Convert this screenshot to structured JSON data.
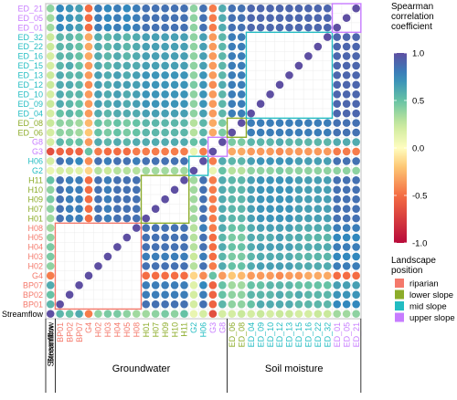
{
  "chart_data": {
    "type": "heatmap",
    "variables": [
      "Streamflow",
      "BP01",
      "BP02",
      "BP07",
      "G4",
      "H02",
      "H03",
      "H04",
      "H05",
      "H08",
      "H01",
      "H07",
      "H09",
      "H10",
      "H11",
      "G2",
      "H06",
      "G3",
      "G8",
      "ED_06",
      "ED_08",
      "ED_04",
      "ED_09",
      "ED_10",
      "ED_12",
      "ED_13",
      "ED_15",
      "ED_16",
      "ED_22",
      "ED_32",
      "ED_01",
      "ED_05",
      "ED_21"
    ],
    "position": [
      "",
      "riparian",
      "riparian",
      "riparian",
      "riparian",
      "riparian",
      "riparian",
      "riparian",
      "riparian",
      "riparian",
      "lower slope",
      "lower slope",
      "lower slope",
      "lower slope",
      "lower slope",
      "mid slope",
      "mid slope",
      "upper slope",
      "upper slope",
      "lower slope",
      "lower slope",
      "mid slope",
      "mid slope",
      "mid slope",
      "mid slope",
      "mid slope",
      "mid slope",
      "mid slope",
      "mid slope",
      "mid slope",
      "upper slope",
      "upper slope",
      "upper slope"
    ],
    "group_blocks": [
      {
        "name": "riparian",
        "start": 1,
        "end": 9
      },
      {
        "name": "lower slope",
        "start": 10,
        "end": 14
      },
      {
        "name": "mid slope",
        "start": 15,
        "end": 16
      },
      {
        "name": "upper slope",
        "start": 17,
        "end": 18
      },
      {
        "name": "lower slope",
        "start": 19,
        "end": 20
      },
      {
        "name": "mid slope",
        "start": 21,
        "end": 29
      },
      {
        "name": "upper slope",
        "start": 30,
        "end": 32
      }
    ],
    "categories_bottom": [
      {
        "label": "Streamflow",
        "start": 0,
        "end": 0
      },
      {
        "label": "Groundwater",
        "start": 1,
        "end": 18
      },
      {
        "label": "Soil moisture",
        "start": 19,
        "end": 32
      }
    ],
    "matrix_note": "Spearman correlation, symmetric; within-block cells left blank",
    "matrix": [
      [
        1,
        0.55,
        0.5,
        0.6,
        -0.45,
        0.4,
        0.45,
        0.45,
        0.4,
        0.35,
        0.35,
        0.4,
        0.45,
        0.4,
        0.5,
        0.1,
        0.2,
        -0.65,
        0.2,
        0.2,
        0.25,
        0.2,
        0.25,
        0.2,
        0.25,
        0.25,
        0.2,
        0.2,
        0.25,
        0.25,
        0.35,
        0.35,
        0.4
      ],
      [
        0.55,
        1,
        null,
        null,
        null,
        null,
        null,
        null,
        null,
        null,
        0.85,
        0.85,
        0.85,
        0.85,
        0.85,
        0.2,
        0.85,
        -0.55,
        0.55,
        0.4,
        0.4,
        0.5,
        0.6,
        0.6,
        0.6,
        0.6,
        0.55,
        0.55,
        0.55,
        0.55,
        0.75,
        0.75,
        0.75
      ],
      [
        0.5,
        null,
        1,
        null,
        null,
        null,
        null,
        null,
        null,
        null,
        0.8,
        0.8,
        0.8,
        0.8,
        0.8,
        0.2,
        0.8,
        -0.55,
        0.5,
        0.4,
        0.4,
        0.55,
        0.55,
        0.55,
        0.6,
        0.55,
        0.6,
        0.55,
        0.55,
        0.55,
        0.7,
        0.7,
        0.7
      ],
      [
        0.6,
        null,
        null,
        1,
        null,
        null,
        null,
        null,
        null,
        null,
        0.8,
        0.8,
        0.8,
        0.8,
        0.8,
        0.15,
        0.75,
        -0.55,
        0.5,
        0.35,
        0.35,
        0.5,
        0.5,
        0.55,
        0.55,
        0.55,
        0.5,
        0.5,
        0.5,
        0.5,
        0.65,
        0.65,
        0.65
      ],
      [
        -0.45,
        null,
        null,
        null,
        1,
        null,
        null,
        null,
        null,
        null,
        -0.5,
        -0.5,
        -0.5,
        -0.5,
        -0.5,
        -0.15,
        -0.4,
        0.5,
        -0.35,
        -0.2,
        -0.25,
        -0.35,
        -0.35,
        -0.35,
        -0.4,
        -0.35,
        -0.35,
        -0.3,
        -0.3,
        -0.3,
        -0.5,
        -0.5,
        -0.5
      ],
      [
        0.4,
        null,
        null,
        null,
        null,
        1,
        null,
        null,
        null,
        null,
        0.85,
        0.85,
        0.85,
        0.85,
        0.85,
        0.3,
        0.85,
        -0.45,
        0.6,
        0.5,
        0.5,
        0.6,
        0.65,
        0.65,
        0.65,
        0.65,
        0.6,
        0.6,
        0.6,
        0.6,
        0.8,
        0.8,
        0.8
      ],
      [
        0.45,
        null,
        null,
        null,
        null,
        null,
        1,
        null,
        null,
        null,
        0.8,
        0.8,
        0.8,
        0.8,
        0.8,
        0.25,
        0.8,
        -0.5,
        0.55,
        0.45,
        0.45,
        0.55,
        0.6,
        0.6,
        0.6,
        0.6,
        0.55,
        0.55,
        0.55,
        0.55,
        0.75,
        0.75,
        0.75
      ],
      [
        0.45,
        null,
        null,
        null,
        null,
        null,
        null,
        1,
        null,
        null,
        0.85,
        0.85,
        0.85,
        0.85,
        0.85,
        0.3,
        0.85,
        -0.5,
        0.6,
        0.5,
        0.5,
        0.6,
        0.65,
        0.65,
        0.65,
        0.65,
        0.6,
        0.6,
        0.6,
        0.6,
        0.8,
        0.8,
        0.8
      ],
      [
        0.4,
        null,
        null,
        null,
        null,
        null,
        null,
        null,
        1,
        null,
        0.85,
        0.85,
        0.85,
        0.85,
        0.85,
        0.3,
        0.85,
        -0.5,
        0.55,
        0.45,
        0.45,
        0.6,
        0.6,
        0.6,
        0.65,
        0.6,
        0.6,
        0.55,
        0.55,
        0.55,
        0.75,
        0.75,
        0.75
      ],
      [
        0.35,
        null,
        null,
        null,
        null,
        null,
        null,
        null,
        null,
        1,
        0.85,
        0.85,
        0.85,
        0.85,
        0.85,
        0.3,
        0.8,
        -0.45,
        0.6,
        0.5,
        0.5,
        0.6,
        0.65,
        0.65,
        0.65,
        0.65,
        0.6,
        0.6,
        0.6,
        0.6,
        0.8,
        0.8,
        0.8
      ],
      [
        0.35,
        0.85,
        0.8,
        0.8,
        -0.5,
        0.85,
        0.8,
        0.85,
        0.85,
        0.85,
        1,
        null,
        null,
        null,
        null,
        0.35,
        0.85,
        -0.45,
        0.6,
        0.55,
        0.55,
        0.65,
        0.7,
        0.7,
        0.7,
        0.7,
        0.65,
        0.65,
        0.65,
        0.65,
        0.85,
        0.85,
        0.85
      ],
      [
        0.4,
        0.85,
        0.8,
        0.8,
        -0.5,
        0.85,
        0.8,
        0.85,
        0.85,
        0.85,
        null,
        1,
        null,
        null,
        null,
        0.35,
        0.85,
        -0.45,
        0.6,
        0.55,
        0.55,
        0.65,
        0.7,
        0.7,
        0.7,
        0.7,
        0.65,
        0.65,
        0.65,
        0.65,
        0.85,
        0.85,
        0.85
      ],
      [
        0.45,
        0.85,
        0.8,
        0.8,
        -0.5,
        0.85,
        0.8,
        0.85,
        0.85,
        0.85,
        null,
        null,
        1,
        null,
        null,
        0.35,
        0.85,
        -0.45,
        0.6,
        0.55,
        0.55,
        0.65,
        0.7,
        0.7,
        0.7,
        0.7,
        0.65,
        0.65,
        0.65,
        0.65,
        0.85,
        0.85,
        0.85
      ],
      [
        0.4,
        0.85,
        0.8,
        0.8,
        -0.5,
        0.85,
        0.8,
        0.85,
        0.85,
        0.85,
        null,
        null,
        null,
        1,
        null,
        0.35,
        0.85,
        -0.45,
        0.6,
        0.55,
        0.55,
        0.65,
        0.7,
        0.7,
        0.7,
        0.7,
        0.65,
        0.65,
        0.65,
        0.65,
        0.85,
        0.85,
        0.85
      ],
      [
        0.5,
        0.85,
        0.8,
        0.8,
        -0.5,
        0.85,
        0.8,
        0.85,
        0.85,
        0.85,
        null,
        null,
        null,
        null,
        1,
        0.35,
        0.85,
        -0.45,
        0.6,
        0.55,
        0.55,
        0.65,
        0.7,
        0.7,
        0.7,
        0.7,
        0.65,
        0.65,
        0.65,
        0.65,
        0.85,
        0.85,
        0.85
      ],
      [
        0.1,
        0.2,
        0.2,
        0.15,
        -0.15,
        0.3,
        0.25,
        0.3,
        0.3,
        0.3,
        0.35,
        0.35,
        0.35,
        0.35,
        0.35,
        1,
        null,
        0.1,
        0.5,
        0.3,
        0.3,
        0.4,
        0.4,
        0.4,
        0.45,
        0.4,
        0.4,
        0.4,
        0.4,
        0.4,
        0.4,
        0.4,
        0.4
      ],
      [
        0.2,
        0.85,
        0.8,
        0.75,
        -0.4,
        0.85,
        0.8,
        0.85,
        0.85,
        0.8,
        0.85,
        0.85,
        0.85,
        0.85,
        0.85,
        null,
        1,
        -0.45,
        0.6,
        0.55,
        0.55,
        0.65,
        0.7,
        0.7,
        0.7,
        0.7,
        0.65,
        0.65,
        0.65,
        0.65,
        0.85,
        0.85,
        0.85
      ],
      [
        -0.65,
        -0.55,
        -0.55,
        -0.55,
        0.5,
        -0.45,
        -0.5,
        -0.5,
        -0.5,
        -0.45,
        -0.45,
        -0.45,
        -0.45,
        -0.45,
        -0.45,
        0.1,
        -0.45,
        1,
        null,
        -0.3,
        -0.3,
        -0.35,
        -0.35,
        -0.35,
        -0.4,
        -0.35,
        -0.35,
        -0.35,
        -0.35,
        -0.35,
        -0.45,
        -0.45,
        -0.45
      ],
      [
        0.2,
        0.55,
        0.5,
        0.5,
        -0.35,
        0.6,
        0.55,
        0.6,
        0.55,
        0.6,
        0.6,
        0.6,
        0.6,
        0.6,
        0.6,
        0.5,
        0.6,
        null,
        1,
        0.45,
        0.45,
        0.55,
        0.55,
        0.55,
        0.6,
        0.55,
        0.55,
        0.55,
        0.55,
        0.55,
        0.6,
        0.6,
        0.6
      ],
      [
        0.2,
        0.4,
        0.4,
        0.35,
        -0.2,
        0.5,
        0.45,
        0.5,
        0.45,
        0.5,
        0.55,
        0.55,
        0.55,
        0.55,
        0.55,
        0.3,
        0.55,
        -0.3,
        0.45,
        1,
        null,
        0.8,
        0.8,
        0.8,
        0.8,
        0.8,
        0.8,
        0.8,
        0.8,
        0.8,
        0.85,
        0.85,
        0.85
      ],
      [
        0.25,
        0.4,
        0.4,
        0.35,
        -0.25,
        0.5,
        0.45,
        0.5,
        0.45,
        0.5,
        0.55,
        0.55,
        0.55,
        0.55,
        0.55,
        0.3,
        0.55,
        -0.3,
        0.45,
        null,
        1,
        0.8,
        0.8,
        0.8,
        0.8,
        0.8,
        0.8,
        0.8,
        0.8,
        0.8,
        0.85,
        0.85,
        0.85
      ],
      [
        0.2,
        0.5,
        0.55,
        0.5,
        -0.35,
        0.6,
        0.55,
        0.6,
        0.6,
        0.6,
        0.65,
        0.65,
        0.65,
        0.65,
        0.65,
        0.4,
        0.65,
        -0.35,
        0.55,
        0.8,
        0.8,
        1,
        null,
        null,
        null,
        null,
        null,
        null,
        null,
        null,
        0.9,
        0.9,
        0.9
      ],
      [
        0.25,
        0.6,
        0.55,
        0.5,
        -0.35,
        0.65,
        0.6,
        0.65,
        0.6,
        0.65,
        0.7,
        0.7,
        0.7,
        0.7,
        0.7,
        0.4,
        0.7,
        -0.35,
        0.55,
        0.8,
        0.8,
        null,
        1,
        null,
        null,
        null,
        null,
        null,
        null,
        null,
        0.9,
        0.9,
        0.9
      ],
      [
        0.2,
        0.6,
        0.55,
        0.55,
        -0.35,
        0.65,
        0.6,
        0.65,
        0.6,
        0.65,
        0.7,
        0.7,
        0.7,
        0.7,
        0.7,
        0.4,
        0.7,
        -0.35,
        0.55,
        0.8,
        0.8,
        null,
        null,
        1,
        null,
        null,
        null,
        null,
        null,
        null,
        0.9,
        0.9,
        0.9
      ],
      [
        0.25,
        0.6,
        0.6,
        0.55,
        -0.4,
        0.65,
        0.6,
        0.65,
        0.65,
        0.65,
        0.7,
        0.7,
        0.7,
        0.7,
        0.7,
        0.45,
        0.7,
        -0.4,
        0.6,
        0.8,
        0.8,
        null,
        null,
        null,
        1,
        null,
        null,
        null,
        null,
        null,
        0.9,
        0.9,
        0.9
      ],
      [
        0.25,
        0.6,
        0.55,
        0.55,
        -0.35,
        0.65,
        0.6,
        0.65,
        0.6,
        0.65,
        0.7,
        0.7,
        0.7,
        0.7,
        0.7,
        0.4,
        0.7,
        -0.35,
        0.55,
        0.8,
        0.8,
        null,
        null,
        null,
        null,
        1,
        null,
        null,
        null,
        null,
        0.9,
        0.9,
        0.9
      ],
      [
        0.2,
        0.55,
        0.6,
        0.5,
        -0.35,
        0.6,
        0.55,
        0.6,
        0.6,
        0.6,
        0.65,
        0.65,
        0.65,
        0.65,
        0.65,
        0.4,
        0.65,
        -0.35,
        0.55,
        0.8,
        0.8,
        null,
        null,
        null,
        null,
        null,
        1,
        null,
        null,
        null,
        0.9,
        0.9,
        0.9
      ],
      [
        0.2,
        0.55,
        0.55,
        0.5,
        -0.3,
        0.6,
        0.55,
        0.6,
        0.55,
        0.6,
        0.65,
        0.65,
        0.65,
        0.65,
        0.65,
        0.4,
        0.65,
        -0.35,
        0.55,
        0.8,
        0.8,
        null,
        null,
        null,
        null,
        null,
        null,
        1,
        null,
        null,
        0.9,
        0.9,
        0.9
      ],
      [
        0.25,
        0.55,
        0.55,
        0.5,
        -0.3,
        0.6,
        0.55,
        0.6,
        0.55,
        0.6,
        0.65,
        0.65,
        0.65,
        0.65,
        0.65,
        0.4,
        0.65,
        -0.35,
        0.55,
        0.8,
        0.8,
        null,
        null,
        null,
        null,
        null,
        null,
        null,
        1,
        null,
        0.9,
        0.9,
        0.9
      ],
      [
        0.25,
        0.55,
        0.55,
        0.5,
        -0.3,
        0.6,
        0.55,
        0.6,
        0.55,
        0.6,
        0.65,
        0.65,
        0.65,
        0.65,
        0.65,
        0.4,
        0.65,
        -0.35,
        0.55,
        0.8,
        0.8,
        null,
        null,
        null,
        null,
        null,
        null,
        null,
        null,
        1,
        0.9,
        0.9,
        0.9
      ],
      [
        0.35,
        0.75,
        0.7,
        0.65,
        -0.5,
        0.8,
        0.75,
        0.8,
        0.75,
        0.8,
        0.85,
        0.85,
        0.85,
        0.85,
        0.85,
        0.4,
        0.85,
        -0.45,
        0.6,
        0.85,
        0.85,
        0.9,
        0.9,
        0.9,
        0.9,
        0.9,
        0.9,
        0.9,
        0.9,
        0.9,
        1,
        null,
        null
      ],
      [
        0.35,
        0.75,
        0.7,
        0.65,
        -0.5,
        0.8,
        0.75,
        0.8,
        0.75,
        0.8,
        0.85,
        0.85,
        0.85,
        0.85,
        0.85,
        0.4,
        0.85,
        -0.45,
        0.6,
        0.85,
        0.85,
        0.9,
        0.9,
        0.9,
        0.9,
        0.9,
        0.9,
        0.9,
        0.9,
        0.9,
        null,
        1,
        null
      ],
      [
        0.4,
        0.75,
        0.7,
        0.65,
        -0.5,
        0.8,
        0.75,
        0.8,
        0.75,
        0.8,
        0.85,
        0.85,
        0.85,
        0.85,
        0.85,
        0.4,
        0.85,
        -0.45,
        0.6,
        0.85,
        0.85,
        0.9,
        0.9,
        0.9,
        0.9,
        0.9,
        0.9,
        0.9,
        0.9,
        0.9,
        null,
        null,
        1
      ]
    ],
    "color_scale": {
      "range": [
        -1,
        1
      ],
      "stops": [
        {
          "v": -1.0,
          "c": "#b80a3a"
        },
        {
          "v": -0.5,
          "c": "#f46d43"
        },
        {
          "v": -0.2,
          "c": "#fdc774"
        },
        {
          "v": 0.0,
          "c": "#fffdbf"
        },
        {
          "v": 0.25,
          "c": "#c9e99b"
        },
        {
          "v": 0.5,
          "c": "#66c2a5"
        },
        {
          "v": 0.75,
          "c": "#3288bd"
        },
        {
          "v": 1.0,
          "c": "#5e4fa2"
        }
      ]
    },
    "legend": {
      "color_title": [
        "Spearman",
        "correlation",
        "coefficient"
      ],
      "color_ticks": [
        1.0,
        0.5,
        0.0,
        -0.5,
        -1.0
      ],
      "color_tick_labels": [
        "1.0",
        "0.5",
        "0.0",
        "-0.5",
        "-1.0"
      ],
      "position_title": [
        "Landscape",
        "position"
      ],
      "position_items": [
        {
          "label": "riparian",
          "color": "#f4796b"
        },
        {
          "label": "lower slope",
          "color": "#8cac2a"
        },
        {
          "label": "mid slope",
          "color": "#22bcc2"
        },
        {
          "label": "upper slope",
          "color": "#c77cff"
        }
      ]
    },
    "label_colors": {
      "": "#000000",
      "riparian": "#f4796b",
      "lower slope": "#8cac2a",
      "mid slope": "#22bcc2",
      "upper slope": "#c77cff"
    }
  }
}
